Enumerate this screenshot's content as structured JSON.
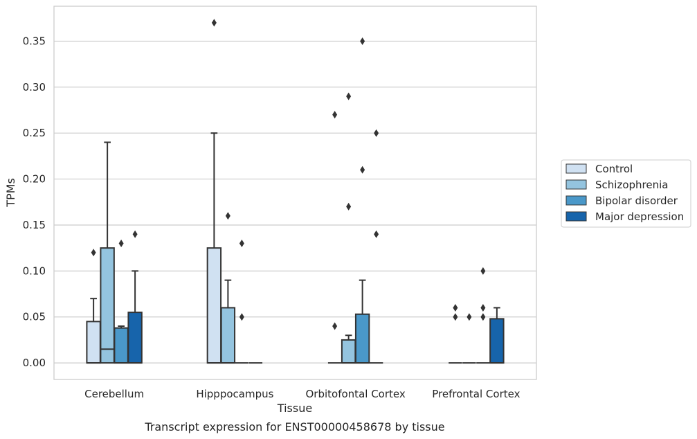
{
  "chart_data": {
    "type": "box",
    "title": "Transcript expression for ENST00000458678 by tissue",
    "xlabel": "Tissue",
    "ylabel": "TPMs",
    "ylim": [
      -0.018,
      0.388
    ],
    "yticks": [
      "0.00",
      "0.05",
      "0.10",
      "0.15",
      "0.20",
      "0.25",
      "0.30",
      "0.35"
    ],
    "grid": true,
    "legend_placement": "right",
    "categories": [
      "Cerebellum",
      "Hipppocampus",
      "Orbitofontal Cortex",
      "Prefrontal Cortex"
    ],
    "series": [
      {
        "name": "Control",
        "color": "#d0e1f2",
        "boxes": [
          {
            "q1": 0.0,
            "median": 0.0,
            "q3": 0.045,
            "whisker_low": 0.0,
            "whisker_high": 0.07,
            "outliers": [
              0.12
            ]
          },
          {
            "q1": 0.0,
            "median": 0.0,
            "q3": 0.125,
            "whisker_low": 0.0,
            "whisker_high": 0.25,
            "outliers": [
              0.37
            ]
          },
          {
            "q1": 0.0,
            "median": 0.0,
            "q3": 0.0,
            "whisker_low": 0.0,
            "whisker_high": 0.0,
            "outliers": [
              0.04,
              0.27
            ]
          },
          {
            "q1": 0.0,
            "median": 0.0,
            "q3": 0.0,
            "whisker_low": 0.0,
            "whisker_high": 0.0,
            "outliers": [
              0.05,
              0.06
            ]
          }
        ]
      },
      {
        "name": "Schizophrenia",
        "color": "#94c4df",
        "boxes": [
          {
            "q1": 0.0,
            "median": 0.015,
            "q3": 0.125,
            "whisker_low": 0.0,
            "whisker_high": 0.24,
            "outliers": []
          },
          {
            "q1": 0.0,
            "median": 0.0,
            "q3": 0.06,
            "whisker_low": 0.0,
            "whisker_high": 0.09,
            "outliers": [
              0.16
            ]
          },
          {
            "q1": 0.0,
            "median": 0.0,
            "q3": 0.025,
            "whisker_low": 0.0,
            "whisker_high": 0.03,
            "outliers": [
              0.17,
              0.29
            ]
          },
          {
            "q1": 0.0,
            "median": 0.0,
            "q3": 0.0,
            "whisker_low": 0.0,
            "whisker_high": 0.0,
            "outliers": [
              0.05
            ]
          }
        ]
      },
      {
        "name": "Bipolar disorder",
        "color": "#4a98c9",
        "boxes": [
          {
            "q1": 0.0,
            "median": 0.0,
            "q3": 0.038,
            "whisker_low": 0.0,
            "whisker_high": 0.04,
            "outliers": [
              0.13
            ]
          },
          {
            "q1": 0.0,
            "median": 0.0,
            "q3": 0.0,
            "whisker_low": 0.0,
            "whisker_high": 0.0,
            "outliers": [
              0.05,
              0.13
            ]
          },
          {
            "q1": 0.0,
            "median": 0.0,
            "q3": 0.053,
            "whisker_low": 0.0,
            "whisker_high": 0.09,
            "outliers": [
              0.21,
              0.35
            ]
          },
          {
            "q1": 0.0,
            "median": 0.0,
            "q3": 0.0,
            "whisker_low": 0.0,
            "whisker_high": 0.0,
            "outliers": [
              0.05,
              0.06,
              0.1
            ]
          }
        ]
      },
      {
        "name": "Major depression",
        "color": "#1764ab",
        "boxes": [
          {
            "q1": 0.0,
            "median": 0.0,
            "q3": 0.055,
            "whisker_low": 0.0,
            "whisker_high": 0.1,
            "outliers": [
              0.14
            ]
          },
          {
            "q1": 0.0,
            "median": 0.0,
            "q3": 0.0,
            "whisker_low": 0.0,
            "whisker_high": 0.0,
            "outliers": []
          },
          {
            "q1": 0.0,
            "median": 0.0,
            "q3": 0.0,
            "whisker_low": 0.0,
            "whisker_high": 0.0,
            "outliers": [
              0.14,
              0.25
            ]
          },
          {
            "q1": 0.0,
            "median": 0.0,
            "q3": 0.048,
            "whisker_low": 0.0,
            "whisker_high": 0.06,
            "outliers": []
          }
        ]
      }
    ]
  }
}
